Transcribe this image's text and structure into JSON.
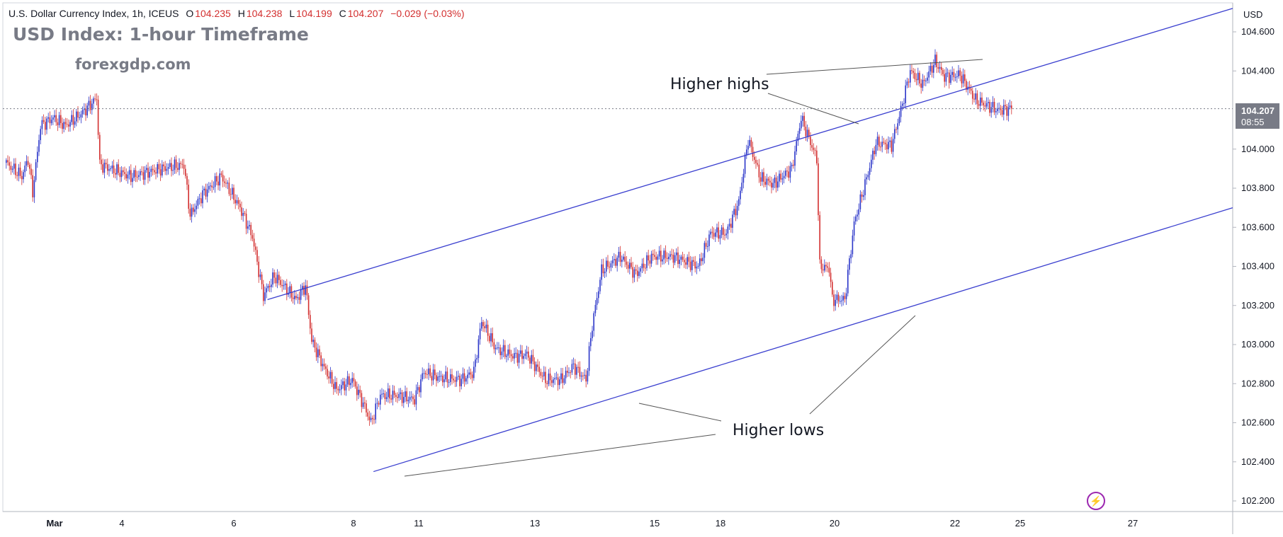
{
  "header": {
    "symbol": "U.S. Dollar Currency Index, 1h, ICEUS",
    "open_label": "O",
    "open": "104.235",
    "high_label": "H",
    "high": "104.238",
    "low_label": "L",
    "low": "104.199",
    "close_label": "C",
    "close": "104.207",
    "change": "−0.029 (−0.03%)"
  },
  "title": "USD Index: 1-hour Timeframe",
  "brand": "forexgdp.com",
  "annotations": {
    "higher_highs": "Higher highs",
    "higher_lows": "Higher lows"
  },
  "price_tag": {
    "value": "104.207",
    "timer": "08:55"
  },
  "colors": {
    "up": "#2b36c9",
    "down": "#d32f2f",
    "channel": "#3a3fcf",
    "annotation_line": "#555555",
    "grid": "#e0e3eb",
    "logo": "#9c27b0"
  },
  "logo_icon": "lightning-bolt-icon",
  "chart_data": {
    "type": "candlestick",
    "currency": "USD",
    "grid": false,
    "x_ticks": [
      "Mar",
      "4",
      "6",
      "8",
      "11",
      "13",
      "15",
      "18",
      "20",
      "22",
      "25",
      "27"
    ],
    "y_ticks": [
      "104.600",
      "104.400",
      "104.000",
      "103.800",
      "103.600",
      "103.400",
      "103.200",
      "103.000",
      "102.800",
      "102.600",
      "102.400",
      "102.200"
    ],
    "ylim": [
      102.16,
      104.74
    ],
    "last_price": 104.207,
    "price_anchors": [
      {
        "bar": 0,
        "price": 103.93
      },
      {
        "bar": 10,
        "price": 103.86
      },
      {
        "bar": 14,
        "price": 103.95
      },
      {
        "bar": 17,
        "price": 103.78
      },
      {
        "bar": 22,
        "price": 104.12
      },
      {
        "bar": 30,
        "price": 104.16
      },
      {
        "bar": 38,
        "price": 104.12
      },
      {
        "bar": 48,
        "price": 104.18
      },
      {
        "bar": 58,
        "price": 104.26
      },
      {
        "bar": 60,
        "price": 103.92
      },
      {
        "bar": 80,
        "price": 103.86
      },
      {
        "bar": 100,
        "price": 103.9
      },
      {
        "bar": 114,
        "price": 103.92
      },
      {
        "bar": 118,
        "price": 103.66
      },
      {
        "bar": 126,
        "price": 103.77
      },
      {
        "bar": 138,
        "price": 103.86
      },
      {
        "bar": 150,
        "price": 103.7
      },
      {
        "bar": 158,
        "price": 103.55
      },
      {
        "bar": 165,
        "price": 103.25
      },
      {
        "bar": 172,
        "price": 103.35
      },
      {
        "bar": 186,
        "price": 103.23
      },
      {
        "bar": 192,
        "price": 103.3
      },
      {
        "bar": 196,
        "price": 103.02
      },
      {
        "bar": 204,
        "price": 102.88
      },
      {
        "bar": 212,
        "price": 102.77
      },
      {
        "bar": 222,
        "price": 102.82
      },
      {
        "bar": 230,
        "price": 102.68
      },
      {
        "bar": 234,
        "price": 102.6
      },
      {
        "bar": 240,
        "price": 102.74
      },
      {
        "bar": 250,
        "price": 102.74
      },
      {
        "bar": 262,
        "price": 102.72
      },
      {
        "bar": 268,
        "price": 102.86
      },
      {
        "bar": 278,
        "price": 102.83
      },
      {
        "bar": 292,
        "price": 102.82
      },
      {
        "bar": 300,
        "price": 102.86
      },
      {
        "bar": 305,
        "price": 103.12
      },
      {
        "bar": 314,
        "price": 102.98
      },
      {
        "bar": 326,
        "price": 102.94
      },
      {
        "bar": 334,
        "price": 102.95
      },
      {
        "bar": 346,
        "price": 102.82
      },
      {
        "bar": 356,
        "price": 102.82
      },
      {
        "bar": 364,
        "price": 102.89
      },
      {
        "bar": 372,
        "price": 102.82
      },
      {
        "bar": 376,
        "price": 103.1
      },
      {
        "bar": 382,
        "price": 103.38
      },
      {
        "bar": 394,
        "price": 103.45
      },
      {
        "bar": 404,
        "price": 103.36
      },
      {
        "bar": 414,
        "price": 103.45
      },
      {
        "bar": 428,
        "price": 103.45
      },
      {
        "bar": 444,
        "price": 103.4
      },
      {
        "bar": 452,
        "price": 103.57
      },
      {
        "bar": 462,
        "price": 103.57
      },
      {
        "bar": 470,
        "price": 103.73
      },
      {
        "bar": 476,
        "price": 104.05
      },
      {
        "bar": 484,
        "price": 103.85
      },
      {
        "bar": 492,
        "price": 103.82
      },
      {
        "bar": 504,
        "price": 103.9
      },
      {
        "bar": 510,
        "price": 104.16
      },
      {
        "bar": 520,
        "price": 103.95
      },
      {
        "bar": 522,
        "price": 103.4
      },
      {
        "bar": 528,
        "price": 103.39
      },
      {
        "bar": 530,
        "price": 103.23
      },
      {
        "bar": 538,
        "price": 103.23
      },
      {
        "bar": 544,
        "price": 103.62
      },
      {
        "bar": 552,
        "price": 103.85
      },
      {
        "bar": 558,
        "price": 104.03
      },
      {
        "bar": 568,
        "price": 104.02
      },
      {
        "bar": 574,
        "price": 104.2
      },
      {
        "bar": 580,
        "price": 104.4
      },
      {
        "bar": 588,
        "price": 104.33
      },
      {
        "bar": 596,
        "price": 104.45
      },
      {
        "bar": 602,
        "price": 104.37
      },
      {
        "bar": 612,
        "price": 104.38
      },
      {
        "bar": 622,
        "price": 104.25
      },
      {
        "bar": 636,
        "price": 104.2
      },
      {
        "bar": 645,
        "price": 104.207
      }
    ],
    "channel": {
      "upper": [
        {
          "bar": 168,
          "price": 103.23
        },
        {
          "bar": 1780,
          "price": 104.72
        }
      ],
      "lower": [
        {
          "bar": 236,
          "price": 102.35
        },
        {
          "bar": 1780,
          "price": 103.7
        }
      ]
    }
  }
}
